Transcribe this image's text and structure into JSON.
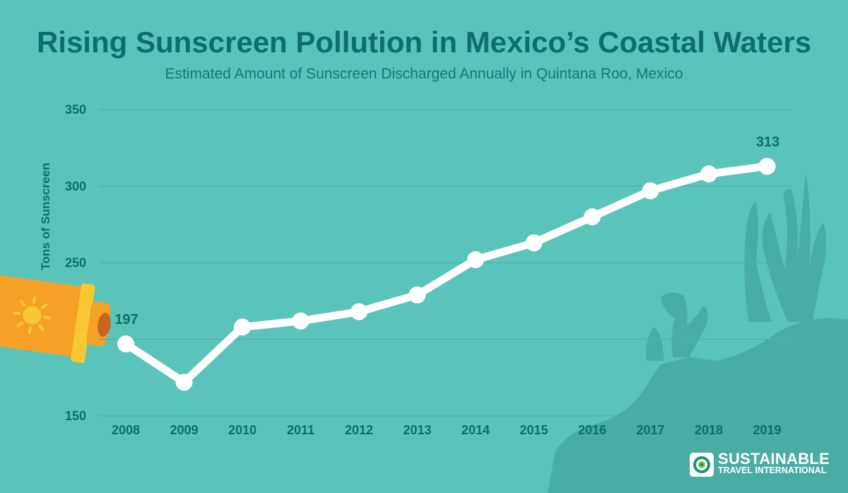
{
  "chart_data": {
    "type": "line",
    "title": "Rising Sunscreen Pollution in Mexico’s Coastal Waters",
    "subtitle": "Estimated Amount of Sunscreen Discharged Annually in Quintana Roo, Mexico",
    "xlabel": "",
    "ylabel": "Tons of Sunscreen",
    "ylim": [
      150,
      350
    ],
    "yticks": [
      150,
      250,
      300,
      350
    ],
    "grid": true,
    "categories": [
      "2008",
      "2009",
      "2010",
      "2011",
      "2012",
      "2013",
      "2014",
      "2015",
      "2016",
      "2017",
      "2018",
      "2019"
    ],
    "series": [
      {
        "name": "Tons of Sunscreen",
        "values": [
          197,
          172,
          208,
          212,
          218,
          229,
          252,
          263,
          280,
          297,
          308,
          313
        ]
      }
    ],
    "annotations": [
      {
        "category": "2008",
        "text": "197"
      },
      {
        "category": "2019",
        "text": "313"
      }
    ]
  },
  "colors": {
    "background": "#5bc4ba",
    "text": "#0f6e69",
    "line": "#ffffff",
    "grid": "#4fb2a8",
    "coral": "#49ada4",
    "tube_orange": "#f5a027",
    "tube_cap": "#f7c833"
  },
  "brand": {
    "name": "SUSTAINABLE",
    "sub": "TRAVEL INTERNATIONAL"
  }
}
